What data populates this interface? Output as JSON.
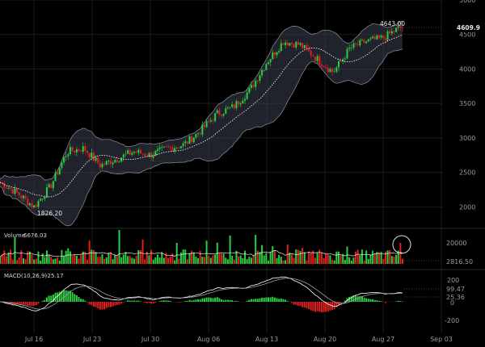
{
  "colors": {
    "background": "#000000",
    "up": "#2ecc40",
    "down": "#e02020",
    "band_fill": "#3a4050",
    "band_line": "#8c93a0",
    "ma_line": "#ffffff",
    "grid": "#1c1c1c"
  },
  "chart_data": [
    {
      "type": "candlestick",
      "panel": "price",
      "title": "",
      "x_ticks": [
        "Jul 16",
        "Jul 23",
        "Jul 30",
        "Aug 06",
        "Aug 13",
        "Aug 20",
        "Aug 27",
        "Sep 03"
      ],
      "ylim": [
        1700,
        5000
      ],
      "y_ticks": [
        2000,
        2500,
        3000,
        3500,
        4000,
        4500,
        5000
      ],
      "last_price_label": "4609.9",
      "high_annotation": "4643.00",
      "low_annotation": "1826.20",
      "overlays": [
        "bollinger bands",
        "moving average (dotted)"
      ],
      "close_series_approx": {
        "x_dates": [
          "Jul 10",
          "Jul 12",
          "Jul 14",
          "Jul 16",
          "Jul 18",
          "Jul 20",
          "Jul 22",
          "Jul 24",
          "Jul 26",
          "Jul 28",
          "Jul 30",
          "Aug 01",
          "Aug 03",
          "Aug 05",
          "Aug 07",
          "Aug 09",
          "Aug 11",
          "Aug 13",
          "Aug 15",
          "Aug 17",
          "Aug 19",
          "Aug 21",
          "Aug 23",
          "Aug 25",
          "Aug 27",
          "Aug 29"
        ],
        "values": [
          2450,
          2350,
          2200,
          2000,
          2300,
          2800,
          2850,
          2600,
          2700,
          2800,
          2750,
          2850,
          2900,
          3100,
          3350,
          3450,
          3700,
          4100,
          4400,
          4350,
          4150,
          3950,
          4300,
          4400,
          4450,
          4600
        ]
      }
    },
    {
      "type": "bar",
      "panel": "volume",
      "label": "Volume",
      "value": "6676.03",
      "y_ticks": [
        "20000"
      ],
      "current_label": "2816.50"
    },
    {
      "type": "line",
      "panel": "macd",
      "label": "MACD(10,26,9)",
      "value": "-25.17",
      "y_ticks": [
        "200",
        "0",
        "-200"
      ],
      "value_labels": [
        "99.47",
        "25.36"
      ]
    }
  ]
}
